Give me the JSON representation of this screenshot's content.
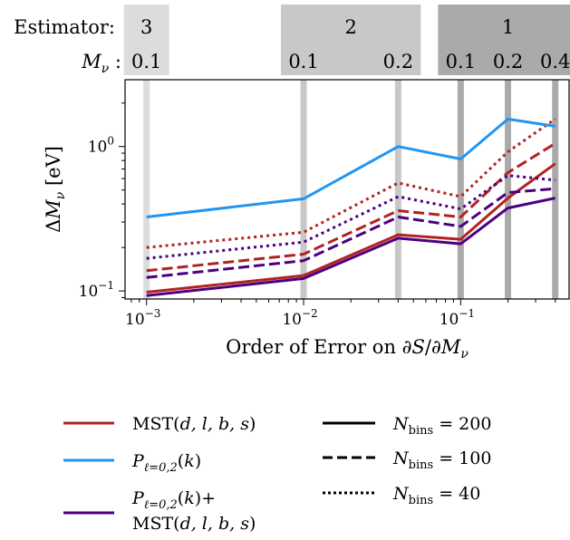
{
  "header": {
    "estimator_label": "Estimator:",
    "mnu_label": "Mν :",
    "bands": [
      {
        "name": "3",
        "mnu": [
          "0.1"
        ],
        "color": "#dcdcdc"
      },
      {
        "name": "2",
        "mnu": [
          "0.1",
          "0.2"
        ],
        "color": "#c8c8c8"
      },
      {
        "name": "1",
        "mnu": [
          "0.1",
          "0.2",
          "0.4"
        ],
        "color": "#aaaaaa"
      }
    ]
  },
  "chart_data": {
    "type": "line",
    "xscale": "log",
    "yscale": "log",
    "xlim": [
      0.00073,
      0.49
    ],
    "ylim": [
      0.088,
      2.9
    ],
    "xlabel": "Order of Error on ∂S/∂Mν",
    "ylabel": "ΔMν [eV]",
    "x": [
      0.001,
      0.01,
      0.04,
      0.1,
      0.2,
      0.4
    ],
    "x_tick_labels": [
      {
        "value": 0.001,
        "base": "10",
        "exp": "−3"
      },
      {
        "value": 0.01,
        "base": "10",
        "exp": "−2"
      },
      {
        "value": 0.1,
        "base": "10",
        "exp": "−1"
      }
    ],
    "y_tick_labels": [
      {
        "value": 0.1,
        "base": "10",
        "exp": "−1"
      },
      {
        "value": 1,
        "base": "10",
        "exp": "0"
      }
    ],
    "vlines": [
      {
        "x": 0.001,
        "color": "#dcdcdc"
      },
      {
        "x": 0.01,
        "color": "#c8c8c8"
      },
      {
        "x": 0.04,
        "color": "#c8c8c8"
      },
      {
        "x": 0.1,
        "color": "#aaaaaa"
      },
      {
        "x": 0.2,
        "color": "#aaaaaa"
      },
      {
        "x": 0.4,
        "color": "#aaaaaa"
      }
    ],
    "series": [
      {
        "estimator": "MST",
        "nbins": "200",
        "color": "#b22222",
        "values": [
          0.098,
          0.128,
          0.245,
          0.228,
          0.44,
          0.76
        ]
      },
      {
        "estimator": "MST",
        "nbins": "100",
        "color": "#b22222",
        "values": [
          0.138,
          0.18,
          0.36,
          0.325,
          0.66,
          1.05
        ]
      },
      {
        "estimator": "MST",
        "nbins": "40",
        "color": "#b22222",
        "values": [
          0.2,
          0.255,
          0.56,
          0.45,
          0.92,
          1.55
        ]
      },
      {
        "estimator": "Pk",
        "nbins": "200",
        "color": "#2196f3",
        "values": [
          0.325,
          0.435,
          1.0,
          0.82,
          1.55,
          1.38
        ]
      },
      {
        "estimator": "Pk+MST",
        "nbins": "200",
        "color": "#4b0082",
        "values": [
          0.093,
          0.122,
          0.232,
          0.212,
          0.375,
          0.44
        ]
      },
      {
        "estimator": "Pk+MST",
        "nbins": "100",
        "color": "#4b0082",
        "values": [
          0.124,
          0.162,
          0.325,
          0.28,
          0.48,
          0.51
        ]
      },
      {
        "estimator": "Pk+MST",
        "nbins": "40",
        "color": "#4b0082",
        "values": [
          0.168,
          0.218,
          0.45,
          0.37,
          0.63,
          0.585
        ]
      }
    ],
    "legend": {
      "placement": "bottom",
      "estimators": [
        {
          "label": "MST(d, l, b, s)",
          "color": "#b22222"
        },
        {
          "label": "Pℓ=0,2(k)",
          "color": "#2196f3"
        },
        {
          "label": "Pℓ=0,2(k)+ MST(d, l, b, s)",
          "color": "#4b0082"
        }
      ],
      "bins": [
        {
          "label": "Nbins = 200",
          "style": "solid"
        },
        {
          "label": "Nbins = 100",
          "style": "dashed"
        },
        {
          "label": "Nbins = 40",
          "style": "dotted"
        }
      ]
    }
  }
}
